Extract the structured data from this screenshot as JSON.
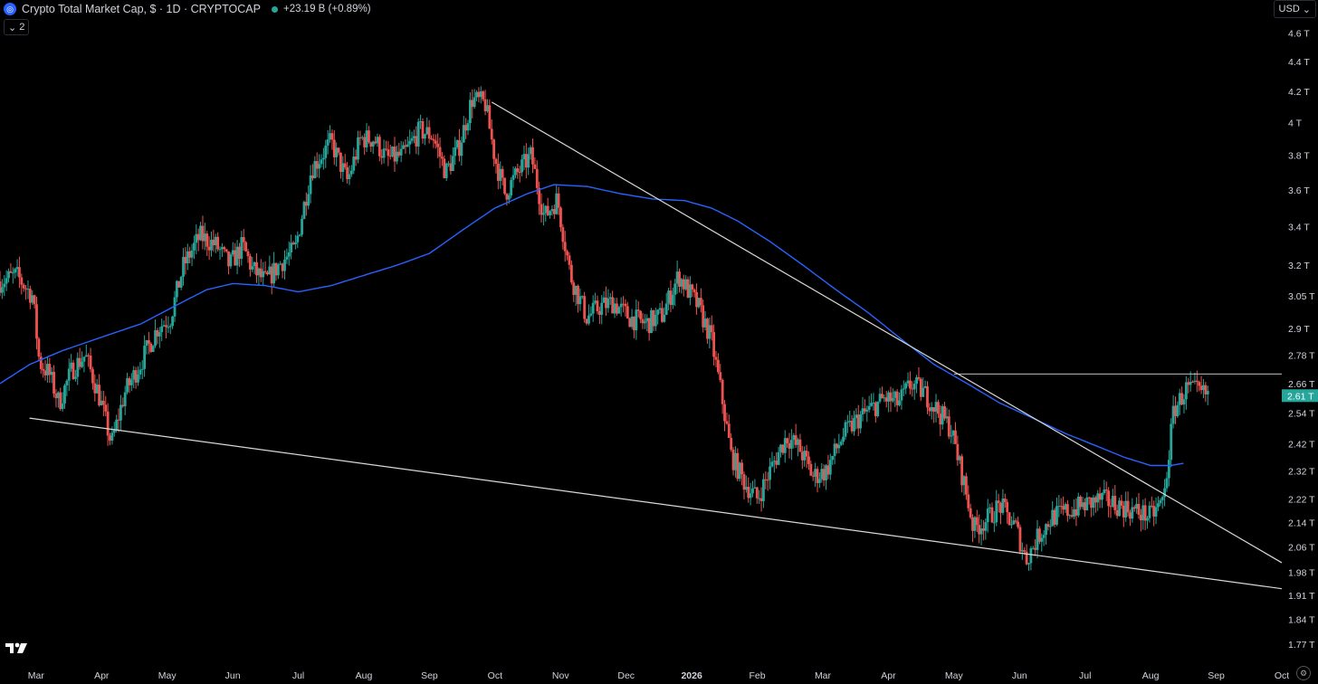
{
  "header": {
    "title": "Crypto Total Market Cap, $ · 1D · CRYPTOCAP",
    "change": "+23.19 B (+0.89%)",
    "indicator_count": "2",
    "currency": "USD"
  },
  "colors": {
    "background": "#000000",
    "up": "#26a69a",
    "down": "#ef5350",
    "ma": "#2962ff",
    "trendline": "#d9d9d9",
    "last_price_bg": "#26a69a"
  },
  "chart_data": {
    "type": "candlestick",
    "symbol": "CRYPTOCAP",
    "interval": "1D",
    "y_scale": "log",
    "ylim": [
      1.73,
      4.75
    ],
    "y_ticks": [
      {
        "value": 4.6,
        "label": "4.6 T"
      },
      {
        "value": 4.4,
        "label": "4.4 T"
      },
      {
        "value": 4.2,
        "label": "4.2 T"
      },
      {
        "value": 4.0,
        "label": "4 T"
      },
      {
        "value": 3.8,
        "label": "3.8 T"
      },
      {
        "value": 3.6,
        "label": "3.6 T"
      },
      {
        "value": 3.4,
        "label": "3.4 T"
      },
      {
        "value": 3.2,
        "label": "3.2 T"
      },
      {
        "value": 3.05,
        "label": "3.05 T"
      },
      {
        "value": 2.9,
        "label": "2.9 T"
      },
      {
        "value": 2.78,
        "label": "2.78 T"
      },
      {
        "value": 2.66,
        "label": "2.66 T"
      },
      {
        "value": 2.54,
        "label": "2.54 T"
      },
      {
        "value": 2.42,
        "label": "2.42 T"
      },
      {
        "value": 2.32,
        "label": "2.32 T"
      },
      {
        "value": 2.22,
        "label": "2.22 T"
      },
      {
        "value": 2.14,
        "label": "2.14 T"
      },
      {
        "value": 2.06,
        "label": "2.06 T"
      },
      {
        "value": 1.98,
        "label": "1.98 T"
      },
      {
        "value": 1.91,
        "label": "1.91 T"
      },
      {
        "value": 1.84,
        "label": "1.84 T"
      },
      {
        "value": 1.77,
        "label": "1.77 T"
      }
    ],
    "x_ticks": [
      "Mar",
      "Apr",
      "May",
      "Jun",
      "Jul",
      "Aug",
      "Sep",
      "Oct",
      "Nov",
      "Dec",
      "2026",
      "Feb",
      "Mar",
      "Apr",
      "May",
      "Jun",
      "Jul",
      "Aug",
      "Sep",
      "Oct"
    ],
    "x_tick_months": [
      0,
      1,
      2,
      3,
      4,
      5,
      6,
      7,
      8,
      9,
      10,
      11,
      12,
      13,
      14,
      15,
      16,
      17,
      18,
      19
    ],
    "x_range_months": [
      -0.55,
      19.0
    ],
    "last_price": {
      "value": 2.61,
      "label": "2.61 T"
    },
    "price_path": [
      [
        -0.55,
        3.12
      ],
      [
        -0.3,
        3.15
      ],
      [
        -0.05,
        3.05
      ],
      [
        0.05,
        2.75
      ],
      [
        0.2,
        2.7
      ],
      [
        0.35,
        2.58
      ],
      [
        0.55,
        2.72
      ],
      [
        0.75,
        2.78
      ],
      [
        0.95,
        2.62
      ],
      [
        1.15,
        2.42
      ],
      [
        1.35,
        2.62
      ],
      [
        1.6,
        2.75
      ],
      [
        1.85,
        2.9
      ],
      [
        2.05,
        2.95
      ],
      [
        2.25,
        3.2
      ],
      [
        2.5,
        3.35
      ],
      [
        2.75,
        3.3
      ],
      [
        2.95,
        3.2
      ],
      [
        3.15,
        3.3
      ],
      [
        3.3,
        3.18
      ],
      [
        3.5,
        3.12
      ],
      [
        3.75,
        3.22
      ],
      [
        3.95,
        3.28
      ],
      [
        4.2,
        3.72
      ],
      [
        4.5,
        3.88
      ],
      [
        4.75,
        3.65
      ],
      [
        4.95,
        3.9
      ],
      [
        5.15,
        3.9
      ],
      [
        5.35,
        3.78
      ],
      [
        5.6,
        3.8
      ],
      [
        5.85,
        3.95
      ],
      [
        6.05,
        3.92
      ],
      [
        6.25,
        3.7
      ],
      [
        6.45,
        3.85
      ],
      [
        6.65,
        4.15
      ],
      [
        6.85,
        4.12
      ],
      [
        7.0,
        3.78
      ],
      [
        7.15,
        3.58
      ],
      [
        7.35,
        3.7
      ],
      [
        7.55,
        3.8
      ],
      [
        7.75,
        3.45
      ],
      [
        7.95,
        3.55
      ],
      [
        8.15,
        3.15
      ],
      [
        8.4,
        2.95
      ],
      [
        8.6,
        3.0
      ],
      [
        8.8,
        3.02
      ],
      [
        9.05,
        2.95
      ],
      [
        9.3,
        2.92
      ],
      [
        9.55,
        2.96
      ],
      [
        9.8,
        3.15
      ],
      [
        10.1,
        3.0
      ],
      [
        10.3,
        2.85
      ],
      [
        10.45,
        2.62
      ],
      [
        10.6,
        2.38
      ],
      [
        10.8,
        2.28
      ],
      [
        11.0,
        2.22
      ],
      [
        11.25,
        2.35
      ],
      [
        11.45,
        2.45
      ],
      [
        11.65,
        2.4
      ],
      [
        11.85,
        2.3
      ],
      [
        12.05,
        2.32
      ],
      [
        12.3,
        2.45
      ],
      [
        12.55,
        2.52
      ],
      [
        12.75,
        2.56
      ],
      [
        12.95,
        2.6
      ],
      [
        13.15,
        2.58
      ],
      [
        13.35,
        2.66
      ],
      [
        13.55,
        2.62
      ],
      [
        13.75,
        2.55
      ],
      [
        13.95,
        2.48
      ],
      [
        14.15,
        2.28
      ],
      [
        14.3,
        2.12
      ],
      [
        14.5,
        2.15
      ],
      [
        14.7,
        2.2
      ],
      [
        14.95,
        2.12
      ],
      [
        15.1,
        2.02
      ],
      [
        15.3,
        2.1
      ],
      [
        15.5,
        2.16
      ],
      [
        15.75,
        2.18
      ],
      [
        16.0,
        2.2
      ],
      [
        16.25,
        2.22
      ],
      [
        16.5,
        2.2
      ],
      [
        16.75,
        2.18
      ],
      [
        17.0,
        2.16
      ],
      [
        17.2,
        2.22
      ],
      [
        17.35,
        2.55
      ],
      [
        17.55,
        2.64
      ],
      [
        17.75,
        2.62
      ],
      [
        17.9,
        2.61
      ]
    ],
    "moving_average": [
      [
        -0.55,
        2.66
      ],
      [
        -0.1,
        2.74
      ],
      [
        0.4,
        2.8
      ],
      [
        1.0,
        2.86
      ],
      [
        1.6,
        2.92
      ],
      [
        2.1,
        3.0
      ],
      [
        2.6,
        3.08
      ],
      [
        3.0,
        3.11
      ],
      [
        3.5,
        3.1
      ],
      [
        4.0,
        3.07
      ],
      [
        4.5,
        3.1
      ],
      [
        5.0,
        3.15
      ],
      [
        5.5,
        3.2
      ],
      [
        6.0,
        3.26
      ],
      [
        6.5,
        3.38
      ],
      [
        7.0,
        3.5
      ],
      [
        7.5,
        3.58
      ],
      [
        7.9,
        3.63
      ],
      [
        8.4,
        3.62
      ],
      [
        8.9,
        3.58
      ],
      [
        9.4,
        3.55
      ],
      [
        9.9,
        3.54
      ],
      [
        10.3,
        3.5
      ],
      [
        10.7,
        3.43
      ],
      [
        11.2,
        3.32
      ],
      [
        11.7,
        3.2
      ],
      [
        12.2,
        3.08
      ],
      [
        12.7,
        2.97
      ],
      [
        13.2,
        2.85
      ],
      [
        13.7,
        2.74
      ],
      [
        14.2,
        2.66
      ],
      [
        14.7,
        2.58
      ],
      [
        15.2,
        2.52
      ],
      [
        15.7,
        2.46
      ],
      [
        16.2,
        2.41
      ],
      [
        16.6,
        2.37
      ],
      [
        17.0,
        2.34
      ],
      [
        17.3,
        2.34
      ],
      [
        17.55,
        2.35
      ]
    ],
    "trendlines": [
      {
        "name": "support",
        "from": [
          -0.1,
          2.52
        ],
        "to": [
          19.0,
          1.93
        ]
      },
      {
        "name": "resistance",
        "from": [
          6.95,
          4.13
        ],
        "to": [
          19.0,
          2.01
        ]
      },
      {
        "name": "horizontal",
        "from": [
          14.0,
          2.7
        ],
        "to": [
          19.0,
          2.7
        ]
      }
    ]
  }
}
